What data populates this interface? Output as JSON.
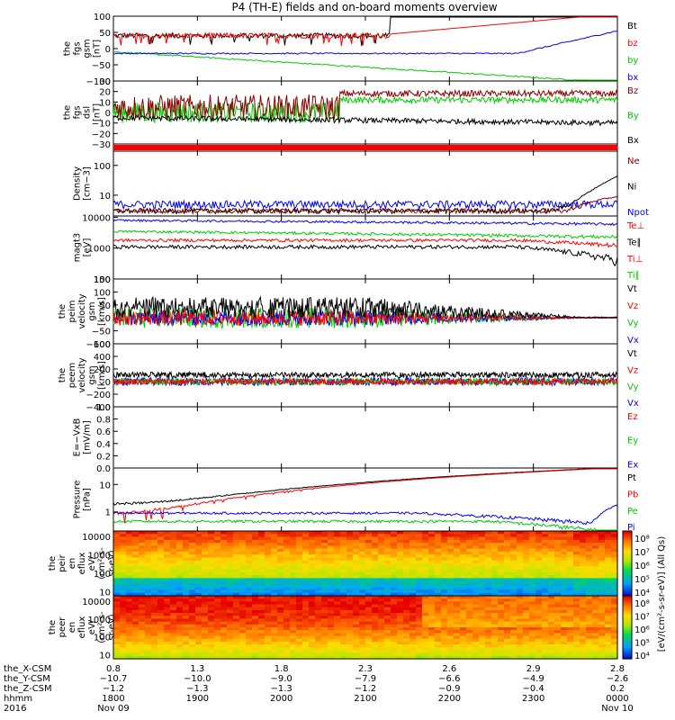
{
  "title": "P4 (TH-E) fields and on-board moments overview",
  "colors": {
    "black": "#000000",
    "red": "#ff0000",
    "darkred": "#8b0000",
    "green": "#00e000",
    "blue": "#0000ff",
    "orange": "#ff8c00"
  },
  "chart_data": [
    {
      "type": "line",
      "ylabel": [
        "the",
        "fgs",
        "gsm",
        "[nT]"
      ],
      "ylim": [
        -100,
        100
      ],
      "yticks": [
        "100",
        "50",
        "0",
        "−50",
        "−100"
      ],
      "legend": [
        "Bt",
        "bz",
        "by",
        "bx"
      ],
      "legend_colors": [
        "#000000",
        "#ff0000",
        "#00cc00",
        "#0000ff"
      ]
    },
    {
      "type": "line",
      "ylabel": [
        "the",
        "fgs",
        "dsl",
        "[nT]"
      ],
      "ylim": [
        -30,
        30
      ],
      "yticks": [
        "30",
        "20",
        "10",
        "0",
        "−10",
        "−20",
        "−30"
      ],
      "legend": [
        "Bz",
        "By",
        "Bx"
      ],
      "legend_colors": [
        "#8b0000",
        "#00cc00",
        "#000000"
      ]
    },
    {
      "type": "bar",
      "note": "mode bar"
    },
    {
      "type": "line",
      "ylabel": [
        "Density",
        "[cm−3]"
      ],
      "yscale": "log",
      "yticks": [
        "100",
        "10"
      ],
      "legend": [
        "Ne",
        "Ni",
        "Npot"
      ],
      "legend_colors": [
        "#8b0000",
        "#000000",
        "#0000ff"
      ]
    },
    {
      "type": "line",
      "ylabel": [
        "magt3",
        "[eV]"
      ],
      "yscale": "log",
      "yticks": [
        "10000",
        "1000",
        "100"
      ],
      "legend": [
        "Te⊥",
        "Te∥",
        "Ti⊥",
        "Ti∥"
      ],
      "legend_colors": [
        "#ff0000",
        "#000000",
        "#ff0000",
        "#00cc00"
      ]
    },
    {
      "type": "line",
      "ylabel": [
        "the",
        "peim",
        "velocity",
        "gsm",
        "[km/s]"
      ],
      "ylim": [
        -100,
        150
      ],
      "yticks": [
        "150",
        "100",
        "50",
        "0",
        "−50",
        "−100"
      ],
      "legend": [
        "Vt",
        "Vz",
        "Vy",
        "Vx"
      ],
      "legend_colors": [
        "#000000",
        "#ff0000",
        "#00cc00",
        "#0000ff"
      ]
    },
    {
      "type": "line",
      "ylabel": [
        "the",
        "peem",
        "velocity",
        "gsm",
        "[km/s]"
      ],
      "ylim": [
        -400,
        600
      ],
      "yticks": [
        "600",
        "400",
        "200",
        "0",
        "−200",
        "−400"
      ],
      "legend": [
        "Vt",
        "Vz",
        "Vy",
        "Vx"
      ],
      "legend_colors": [
        "#000000",
        "#ff0000",
        "#00cc00",
        "#0000ff"
      ]
    },
    {
      "type": "line",
      "ylabel": [
        "E=−VxB",
        "[mV/m]"
      ],
      "ylim": [
        0,
        1
      ],
      "yticks": [
        "1.0",
        "0.8",
        "0.6",
        "0.4",
        "0.2",
        "0.0"
      ],
      "legend": [
        "Ez",
        "Ey",
        "Ex"
      ],
      "legend_colors": [
        "#ff0000",
        "#00cc00",
        "#0000ff"
      ]
    },
    {
      "type": "line",
      "ylabel": [
        "Pressure",
        "[nPa]"
      ],
      "yscale": "log",
      "yticks": [
        "10",
        "1"
      ],
      "legend": [
        "Pt",
        "Pb",
        "Pe",
        "Pi"
      ],
      "legend_colors": [
        "#000000",
        "#ff0000",
        "#00cc00",
        "#0000ff"
      ]
    },
    {
      "type": "heatmap",
      "ylabel": [
        "the",
        "peir",
        "en",
        "eflux",
        "eV/",
        "(cm²-s-",
        "sr-eV)"
      ],
      "yscale": "log",
      "yticks": [
        "10000",
        "1000",
        "100",
        "10"
      ],
      "colorbar_ticks": [
        "10⁸",
        "10⁷",
        "10⁶",
        "10⁵",
        "10⁴"
      ],
      "colorbar_label": "[eV/(cm²-s-sr-eV)] (All Qs)"
    },
    {
      "type": "heatmap",
      "ylabel": [
        "the",
        "peer",
        "en",
        "eflux",
        "eV/",
        "(cm²-s-",
        "sr-eV)"
      ],
      "yscale": "log",
      "yticks": [
        "10000",
        "1000",
        "100",
        "10"
      ],
      "colorbar_ticks": [
        "10⁸",
        "10⁷",
        "10⁶",
        "10⁵",
        "10⁴"
      ],
      "colorbar_label": "[eV/(cm²-s-sr-eV)] (All Qs)"
    }
  ],
  "xaxis": {
    "row_labels": [
      "the_X-CSM",
      "the_Y-CSM",
      "the_Z-CSM",
      "hhmm",
      "2016"
    ],
    "cols": [
      {
        "r0": "0.8",
        "r1": "−10.7",
        "r2": "−1.2",
        "hhmm": "1800",
        "date": "Nov 09"
      },
      {
        "r0": "1.3",
        "r1": "−10.0",
        "r2": "−1.3",
        "hhmm": "1900",
        "date": ""
      },
      {
        "r0": "1.8",
        "r1": "−9.0",
        "r2": "−1.3",
        "hhmm": "2000",
        "date": ""
      },
      {
        "r0": "2.3",
        "r1": "−7.9",
        "r2": "−1.2",
        "hhmm": "2100",
        "date": ""
      },
      {
        "r0": "2.6",
        "r1": "−6.6",
        "r2": "−0.9",
        "hhmm": "2200",
        "date": ""
      },
      {
        "r0": "2.9",
        "r1": "−4.9",
        "r2": "−0.4",
        "hhmm": "2300",
        "date": ""
      },
      {
        "r0": "2.8",
        "r1": "−2.6",
        "r2": "0.2",
        "hhmm": "0000",
        "date": "Nov 10"
      }
    ]
  }
}
